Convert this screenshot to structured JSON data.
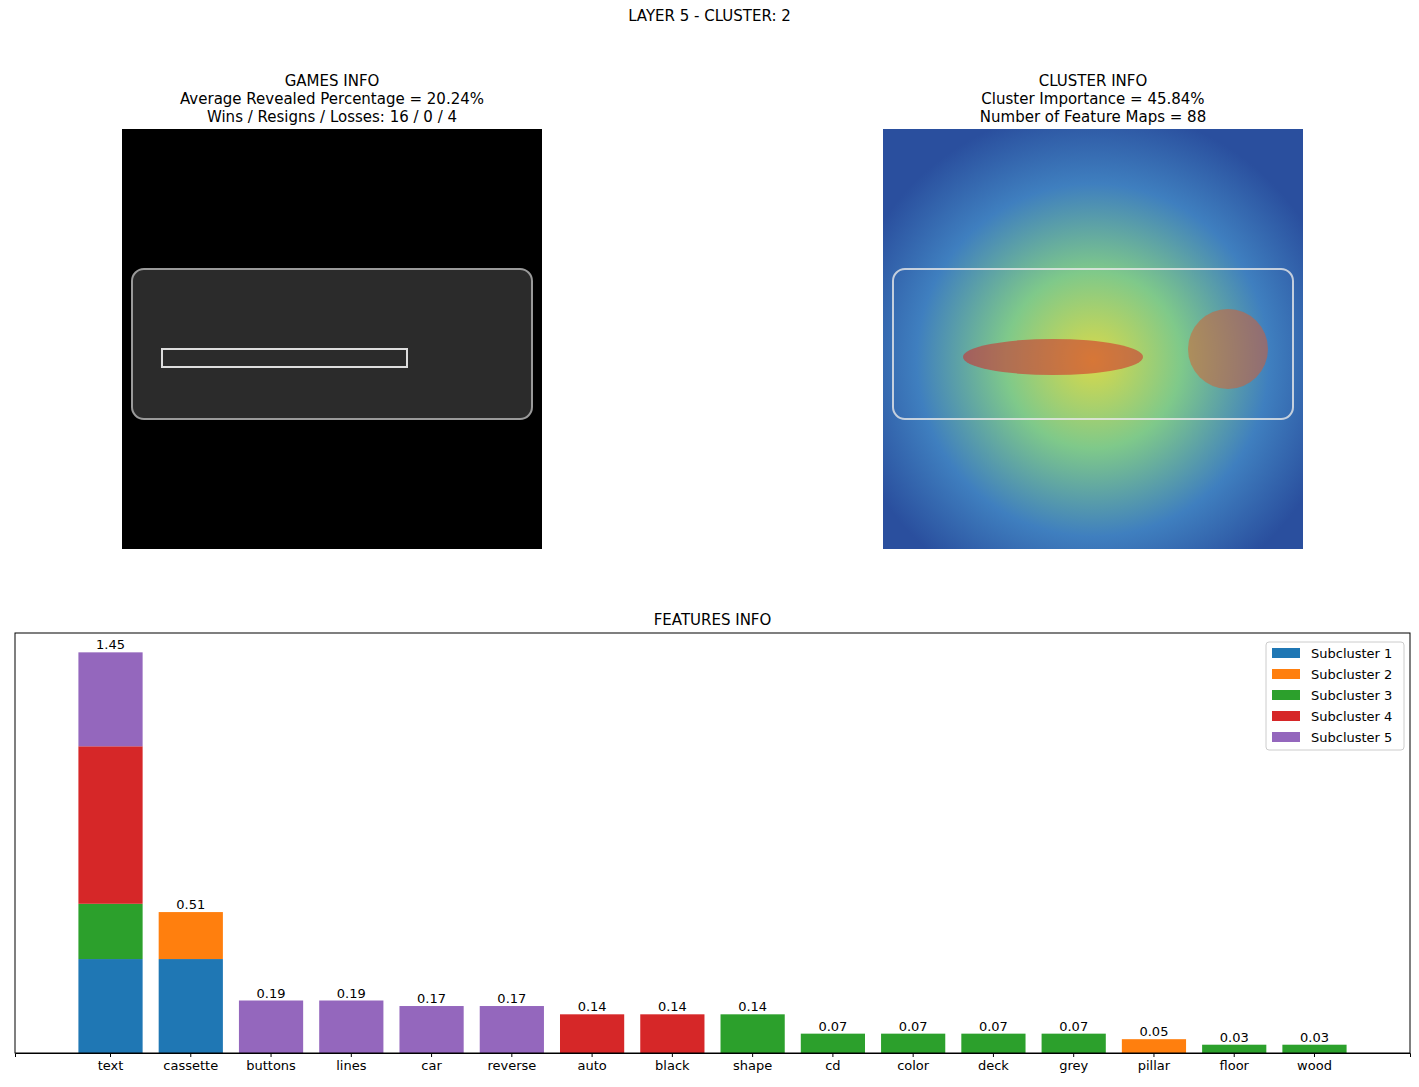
{
  "suptitle": "LAYER 5 - CLUSTER: 2",
  "panels": [
    {
      "title": "GAMES INFO",
      "lines": [
        "Average Revealed Percentage = 20.24%",
        "Wins / Resigns / Losses: 16 / 0 / 4"
      ]
    },
    {
      "title": "CLUSTER INFO",
      "lines": [
        "Cluster Importance = 45.84%",
        "Number of Feature Maps = 88"
      ]
    }
  ],
  "chart_data": {
    "type": "bar",
    "title": "FEATURES INFO",
    "stacked": true,
    "legend": "upper right",
    "tick_labels": "x",
    "data_labels": true,
    "ylim": [
      0,
      1.52
    ],
    "categories": [
      "text",
      "cassette",
      "buttons",
      "lines",
      "car",
      "reverse",
      "auto",
      "black",
      "shape",
      "cd",
      "color",
      "deck",
      "grey",
      "pillar",
      "floor",
      "wood"
    ],
    "totals": [
      1.45,
      0.51,
      0.19,
      0.19,
      0.17,
      0.17,
      0.14,
      0.14,
      0.14,
      0.07,
      0.07,
      0.07,
      0.07,
      0.05,
      0.03,
      0.03
    ],
    "series": [
      {
        "name": "Subcluster 1",
        "color": "#1f77b4",
        "values": [
          0.34,
          0.34,
          0,
          0,
          0,
          0,
          0,
          0,
          0,
          0,
          0,
          0,
          0,
          0,
          0,
          0
        ]
      },
      {
        "name": "Subcluster 2",
        "color": "#ff7f0e",
        "values": [
          0,
          0.17,
          0,
          0,
          0,
          0,
          0,
          0,
          0,
          0,
          0,
          0,
          0,
          0.05,
          0,
          0
        ]
      },
      {
        "name": "Subcluster 3",
        "color": "#2ca02c",
        "values": [
          0.2,
          0,
          0,
          0,
          0,
          0,
          0,
          0,
          0.14,
          0.07,
          0.07,
          0.07,
          0.07,
          0,
          0.03,
          0.03
        ]
      },
      {
        "name": "Subcluster 4",
        "color": "#d62728",
        "values": [
          0.57,
          0,
          0,
          0,
          0,
          0,
          0.14,
          0.14,
          0,
          0,
          0,
          0,
          0,
          0,
          0,
          0
        ]
      },
      {
        "name": "Subcluster 5",
        "color": "#9467bd",
        "values": [
          0.34,
          0,
          0.19,
          0.19,
          0.17,
          0.17,
          0,
          0,
          0,
          0,
          0,
          0,
          0,
          0,
          0,
          0
        ]
      }
    ]
  }
}
